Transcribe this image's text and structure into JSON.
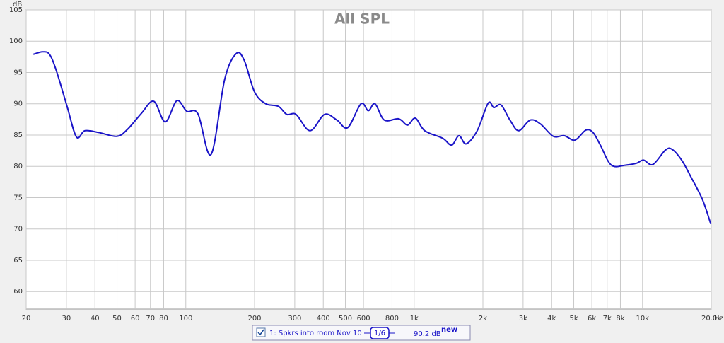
{
  "chart_data": {
    "type": "line",
    "title": "All SPL",
    "y_label": "dB",
    "x_label": "Hz",
    "log_x": true,
    "grid": true,
    "xlim": [
      20,
      20000
    ],
    "ylim": [
      57.2,
      105
    ],
    "yticks": [
      60,
      65,
      70,
      75,
      80,
      85,
      90,
      95,
      100,
      105
    ],
    "xticks": [
      20,
      30,
      40,
      50,
      60,
      70,
      80,
      100,
      200,
      300,
      400,
      500,
      600,
      800,
      {
        "value": 1000,
        "label": "1k"
      },
      {
        "value": 2000,
        "label": "2k"
      },
      {
        "value": 3000,
        "label": "3k"
      },
      {
        "value": 4000,
        "label": "4k"
      },
      {
        "value": 5000,
        "label": "5k"
      },
      {
        "value": 6000,
        "label": "6k"
      },
      {
        "value": 7000,
        "label": "7k"
      },
      {
        "value": 8000,
        "label": "8k"
      },
      {
        "value": 10000,
        "label": "10k"
      },
      {
        "value": 20000,
        "label": "20.0k"
      }
    ],
    "x": [
      21.5,
      23.6,
      25.3,
      27.1,
      30.2,
      33.2,
      36.2,
      41.7,
      49.9,
      55.5,
      64,
      72.4,
      81.3,
      91.4,
      101,
      113,
      129,
      148,
      166,
      180,
      200,
      224,
      254,
      277,
      304,
      350,
      405,
      459,
      512,
      585,
      630,
      674,
      740,
      856,
      935,
      1012,
      1112,
      1331,
      1459,
      1571,
      1689,
      1888,
      2109,
      2233,
      2403,
      2627,
      2869,
      3221,
      3568,
      4066,
      4541,
      5062,
      5650,
      6074,
      6535,
      7301,
      8441,
      9415,
      10100,
      11100,
      12600,
      13500,
      14900,
      16300,
      18300,
      19900
    ],
    "series": [
      {
        "name": "1: Spkrs into room Nov 10",
        "color": "#1a14c8",
        "values": [
          97.9,
          98.3,
          97.9,
          95.3,
          89.6,
          84.7,
          85.7,
          85.4,
          84.8,
          85.9,
          88.5,
          90.4,
          87.1,
          90.5,
          88.8,
          88.4,
          81.9,
          93.9,
          98.0,
          97.0,
          91.9,
          90.0,
          89.6,
          88.3,
          88.3,
          85.7,
          88.3,
          87.4,
          86.2,
          90.0,
          88.9,
          90.0,
          87.4,
          87.6,
          86.6,
          87.7,
          85.7,
          84.5,
          83.4,
          84.9,
          83.6,
          85.7,
          90.1,
          89.4,
          89.8,
          87.4,
          85.7,
          87.4,
          86.8,
          84.8,
          84.9,
          84.2,
          85.8,
          85.4,
          83.4,
          80.2,
          80.2,
          80.5,
          81.0,
          80.3,
          82.6,
          82.7,
          80.9,
          78.3,
          74.7,
          70.8
        ]
      }
    ],
    "smoothing": "1/6",
    "level_label": "90.2 dB",
    "level_note": "new"
  }
}
